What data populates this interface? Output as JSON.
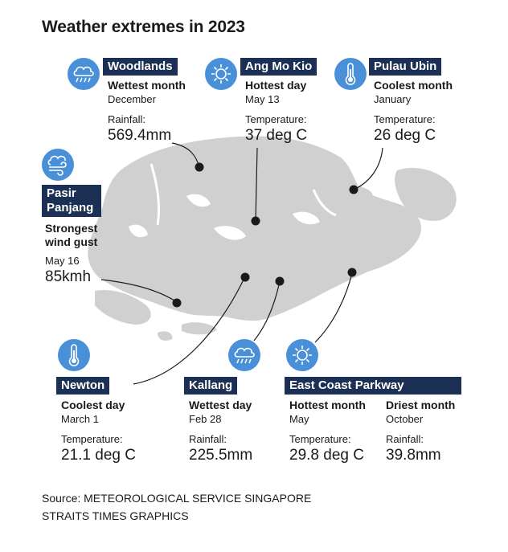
{
  "title": "Weather extremes in 2023",
  "colors": {
    "land": "#d0d0d0",
    "water": "#ffffff",
    "tag_bg": "#1c2f54",
    "icon_bg": "#4a90d9"
  },
  "locations": {
    "woodlands": {
      "name": "Woodlands",
      "icon": "rain-cloud-icon",
      "metric": "Wettest month",
      "date": "December",
      "label": "Rainfall:",
      "value": "569.4mm"
    },
    "ang_mo_kio": {
      "name": "Ang Mo Kio",
      "icon": "sun-icon",
      "metric": "Hottest day",
      "date": "May 13",
      "label": "Temperature:",
      "value": "37 deg C"
    },
    "pulau_ubin": {
      "name": "Pulau Ubin",
      "icon": "thermometer-icon",
      "metric": "Coolest month",
      "date": "January",
      "label": "Temperature:",
      "value": "26 deg C"
    },
    "pasir_panjang": {
      "name": "Pasir Panjang",
      "icon": "wind-icon",
      "metric": "Strongest wind gust",
      "date": "May 16",
      "value": "85kmh"
    },
    "newton": {
      "name": "Newton",
      "icon": "thermometer-icon",
      "metric": "Coolest day",
      "date": "March 1",
      "label": "Temperature:",
      "value": "21.1 deg C"
    },
    "kallang": {
      "name": "Kallang",
      "icon": "rain-cloud-icon",
      "metric": "Wettest day",
      "date": "Feb 28",
      "label": "Rainfall:",
      "value": "225.5mm"
    },
    "east_coast": {
      "name": "East Coast Parkway",
      "icon": "sun-icon",
      "hot": {
        "metric": "Hottest month",
        "date": "May",
        "label": "Temperature:",
        "value": "29.8 deg C"
      },
      "dry": {
        "metric": "Driest month",
        "date": "October",
        "label": "Rainfall:",
        "value": "39.8mm"
      }
    }
  },
  "source": {
    "line1": "Source: METEOROLOGICAL SERVICE SINGAPORE",
    "line2": "STRAITS TIMES GRAPHICS"
  }
}
